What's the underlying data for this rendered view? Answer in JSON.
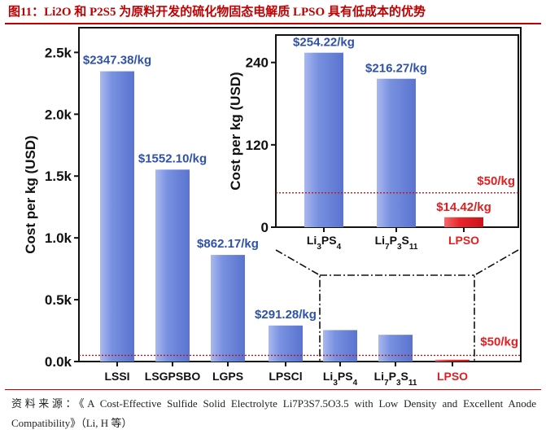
{
  "title": "图11：Li2O  和  P2S5 为原料开发的硫化物固态电解质 LPSO 具有低成本的优势",
  "source": "资料来源：《A Cost-Effective Sulfide Solid Electrolyte Li7P3S7.5O3.5 with Low Density and Excellent Anode Compatibility》（Li, H 等）",
  "colors": {
    "bar": "#6f86d8",
    "bar_light": "#a4b4ee",
    "lpso": "#e8252b",
    "ref_line": "#c0141b",
    "label_blue": "#2f52a8",
    "label_red": "#e02020"
  },
  "chart_data": [
    {
      "type": "bar",
      "name": "main",
      "ylabel": "Cost per kg (USD)",
      "ylim": [
        0,
        2700
      ],
      "yticks": [
        0,
        500,
        1000,
        1500,
        2000,
        2500
      ],
      "ytick_labels": [
        "0.0k",
        "0.5k",
        "1.0k",
        "1.5k",
        "2.0k",
        "2.5k"
      ],
      "categories": [
        {
          "main": "LSSI"
        },
        {
          "main": "LSGPSBO"
        },
        {
          "main": "LGPS"
        },
        {
          "main": "LPSCl"
        },
        {
          "main": "Li",
          "sub": "3",
          "main2": "PS",
          "sub2": "4"
        },
        {
          "main": "Li",
          "sub": "7",
          "main2": "P",
          "sub2": "3",
          "main3": "S",
          "sub3": "11"
        },
        {
          "main": "LPSO"
        }
      ],
      "values": [
        2347.38,
        1552.1,
        862.17,
        291.28,
        254.22,
        216.27,
        14.42
      ],
      "data_labels": [
        "$2347.38/kg",
        "$1552.10/kg",
        "$862.17/kg",
        "$291.28/kg",
        "",
        "",
        ""
      ],
      "reference_line": {
        "value": 50,
        "label": "$50/kg"
      }
    },
    {
      "type": "bar",
      "name": "inset",
      "ylabel": "Cost per kg (USD)",
      "ylim": [
        0,
        280
      ],
      "yticks": [
        0,
        120,
        240
      ],
      "ytick_labels": [
        "0",
        "120",
        "240"
      ],
      "categories": [
        {
          "main": "Li",
          "sub": "3",
          "main2": "PS",
          "sub2": "4"
        },
        {
          "main": "Li",
          "sub": "7",
          "main2": "P",
          "sub2": "3",
          "main3": "S",
          "sub3": "11"
        },
        {
          "main": "LPSO"
        }
      ],
      "values": [
        254.22,
        216.27,
        14.42
      ],
      "data_labels": [
        "$254.22/kg",
        "$216.27/kg",
        "$14.42/kg"
      ],
      "reference_line": {
        "value": 50,
        "label": "$50/kg"
      }
    }
  ]
}
